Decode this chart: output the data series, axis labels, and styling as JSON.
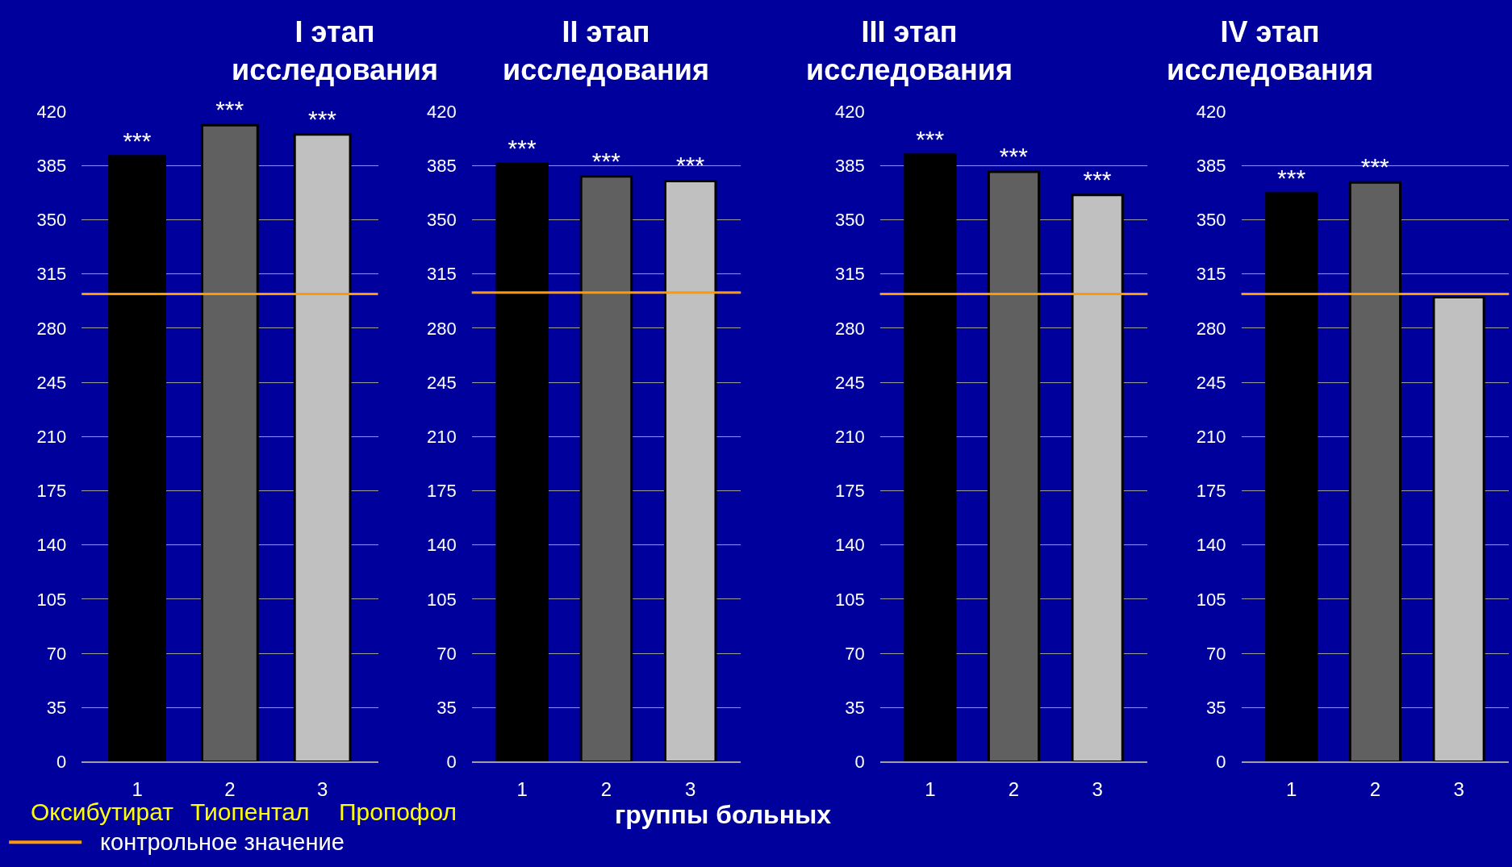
{
  "chart_data": [
    {
      "type": "bar",
      "title": "I этап\nисследования",
      "categories": [
        "1",
        "2",
        "3"
      ],
      "values": [
        391,
        411,
        405
      ],
      "colors": [
        "#000000",
        "#606060",
        "#c0c0c0"
      ],
      "value_labels": [
        "***",
        "***",
        "***"
      ],
      "ylim": [
        0,
        420
      ],
      "yticks": [
        0,
        35,
        70,
        105,
        140,
        175,
        210,
        245,
        280,
        315,
        350,
        385,
        420
      ],
      "grid": "y",
      "legend": "bottom left",
      "ref_lines": [
        {
          "axis": "y",
          "value": 302,
          "label": "контрольное значение",
          "color": "#ff9900"
        }
      ],
      "annotations": [
        "Оксибутират",
        "Тиопентал",
        "Пропофол"
      ]
    },
    {
      "type": "bar",
      "title": "II этап\nисследования",
      "categories": [
        "1",
        "2",
        "3"
      ],
      "values": [
        386,
        378,
        375
      ],
      "colors": [
        "#000000",
        "#606060",
        "#c0c0c0"
      ],
      "value_labels": [
        "***",
        "***",
        "***"
      ],
      "ylim": [
        0,
        420
      ],
      "yticks": [
        0,
        35,
        70,
        105,
        140,
        175,
        210,
        245,
        280,
        315,
        350,
        385,
        420
      ],
      "grid": "y",
      "ref_lines": [
        {
          "axis": "y",
          "value": 303,
          "label": null,
          "color": "#ff9900"
        }
      ],
      "annotations": [
        "группы больных"
      ]
    },
    {
      "type": "bar",
      "title": "III этап\nисследования",
      "categories": [
        "1",
        "2",
        "3"
      ],
      "values": [
        392,
        381,
        366
      ],
      "colors": [
        "#000000",
        "#606060",
        "#c0c0c0"
      ],
      "value_labels": [
        "***",
        "***",
        "***"
      ],
      "ylim": [
        0,
        420
      ],
      "yticks": [
        0,
        35,
        70,
        105,
        140,
        175,
        210,
        245,
        280,
        315,
        350,
        385,
        420
      ],
      "grid": "y",
      "ref_lines": [
        {
          "axis": "y",
          "value": 302,
          "label": null,
          "color": "#ff9900"
        }
      ]
    },
    {
      "type": "bar",
      "title": "IV этап\nисследования",
      "categories": [
        "1",
        "2",
        "3"
      ],
      "values": [
        367,
        374,
        300
      ],
      "colors": [
        "#000000",
        "#606060",
        "#c0c0c0"
      ],
      "value_labels": [
        "***",
        "***",
        null
      ],
      "ylim": [
        0,
        420
      ],
      "yticks": [
        0,
        35,
        70,
        105,
        140,
        175,
        210,
        245,
        280,
        315,
        350,
        385,
        420
      ],
      "grid": "y",
      "ref_lines": [
        {
          "axis": "y",
          "value": 302,
          "label": null,
          "color": "#ff9900"
        }
      ]
    }
  ]
}
